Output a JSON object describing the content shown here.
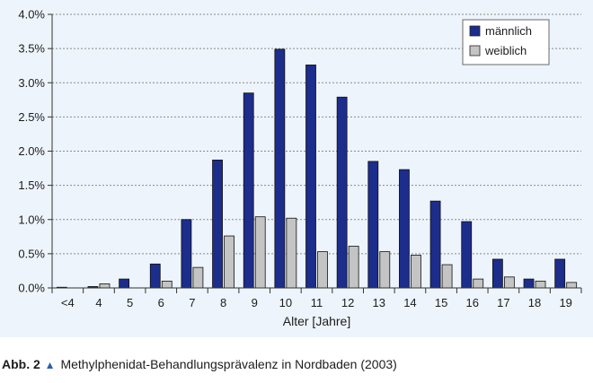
{
  "chart_data": {
    "type": "bar",
    "title": "",
    "xlabel": "Alter [Jahre]",
    "ylabel": "",
    "categories": [
      "<4",
      "4",
      "5",
      "6",
      "7",
      "8",
      "9",
      "10",
      "11",
      "12",
      "13",
      "14",
      "15",
      "16",
      "17",
      "18",
      "19"
    ],
    "series": [
      {
        "name": "männlich",
        "color": "#1c2d8c",
        "values": [
          0.01,
          0.02,
          0.13,
          0.35,
          1.0,
          1.87,
          2.85,
          3.49,
          3.26,
          2.79,
          1.85,
          1.73,
          1.27,
          0.97,
          0.42,
          0.13,
          0.42
        ]
      },
      {
        "name": "weiblich",
        "color": "#c4c4c4",
        "values": [
          0.0,
          0.06,
          0.0,
          0.1,
          0.3,
          0.76,
          1.04,
          1.02,
          0.53,
          0.61,
          0.53,
          0.48,
          0.34,
          0.13,
          0.16,
          0.1,
          0.08
        ]
      }
    ],
    "ylim": [
      0,
      4.0
    ],
    "yticks": [
      "0.0%",
      "0.5%",
      "1.0%",
      "1.5%",
      "2.0%",
      "2.5%",
      "3.0%",
      "3.5%",
      "4.0%"
    ],
    "grid": true,
    "legend_position": "top-right"
  },
  "caption": {
    "label": "Abb. 2",
    "marker": "▲",
    "text": "Methylphenidat-Behandlungsprävalenz in Nordbaden (2003)"
  }
}
